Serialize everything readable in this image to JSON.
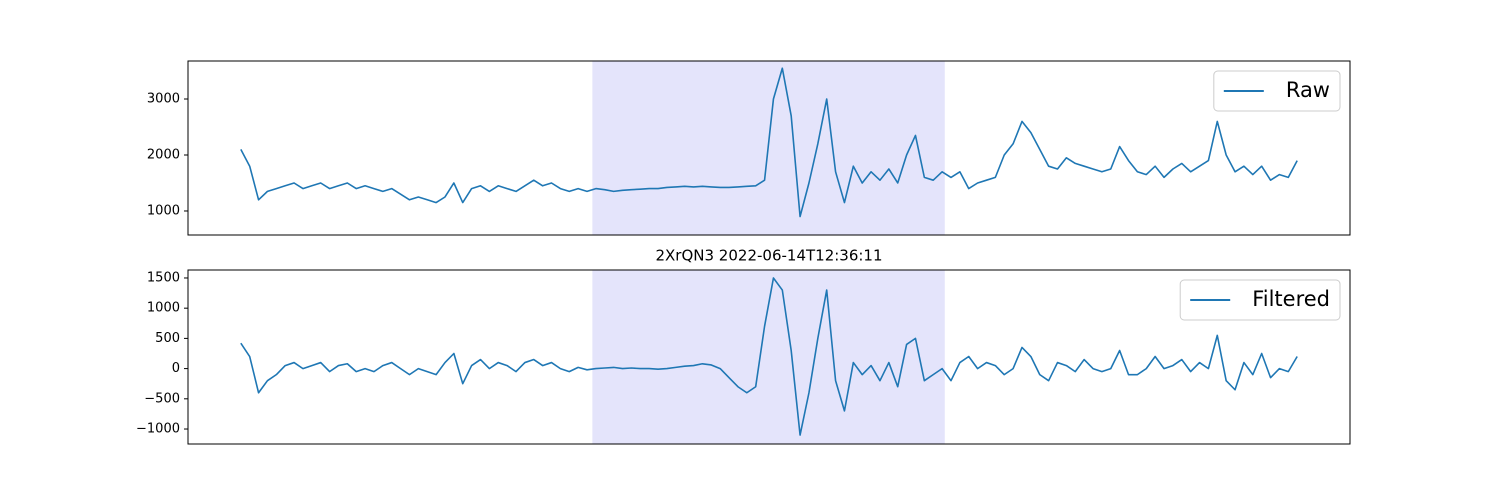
{
  "chart_data": [
    {
      "type": "line",
      "legend": "upper right",
      "xlim": [
        -5.95,
        124.95
      ],
      "ylim": [
        571,
        3679
      ],
      "yticks": [
        1000,
        2000,
        3000
      ],
      "span": [
        39.6,
        79.3
      ],
      "span_color": "#e4e4fb",
      "series": [
        {
          "name": "Raw",
          "color": "#1f77b4",
          "values": [
            2100,
            1800,
            1200,
            1350,
            1400,
            1450,
            1500,
            1400,
            1450,
            1500,
            1400,
            1450,
            1500,
            1400,
            1450,
            1400,
            1350,
            1400,
            1300,
            1200,
            1250,
            1200,
            1150,
            1250,
            1500,
            1150,
            1400,
            1450,
            1350,
            1450,
            1400,
            1350,
            1450,
            1550,
            1450,
            1500,
            1400,
            1350,
            1400,
            1350,
            1400,
            1380,
            1350,
            1370,
            1380,
            1390,
            1400,
            1400,
            1420,
            1430,
            1440,
            1430,
            1440,
            1430,
            1420,
            1420,
            1430,
            1440,
            1450,
            1550,
            3000,
            3550,
            2700,
            900,
            1500,
            2200,
            3000,
            1700,
            1150,
            1800,
            1500,
            1700,
            1550,
            1750,
            1500,
            2000,
            2350,
            1600,
            1550,
            1700,
            1600,
            1700,
            1400,
            1500,
            1550,
            1600,
            2000,
            2200,
            2600,
            2400,
            2100,
            1800,
            1750,
            1950,
            1850,
            1800,
            1750,
            1700,
            1750,
            2150,
            1900,
            1700,
            1650,
            1800,
            1600,
            1750,
            1850,
            1700,
            1800,
            1900,
            2600,
            2000,
            1700,
            1800,
            1650,
            1800,
            1550,
            1650,
            1600,
            1900
          ]
        }
      ]
    },
    {
      "type": "line",
      "title": "2XrQN3 2022-06-14T12:36:11",
      "legend": "upper right",
      "xlim": [
        -5.95,
        124.95
      ],
      "ylim": [
        -1248,
        1632
      ],
      "yticks": [
        {
          "value": -1000,
          "label": "−1000"
        },
        {
          "value": -500,
          "label": "−500"
        },
        0,
        500,
        1000,
        1500
      ],
      "span": [
        39.6,
        79.3
      ],
      "span_color": "#e4e4fb",
      "series": [
        {
          "name": "Filtered",
          "color": "#1f77b4",
          "values": [
            420,
            200,
            -400,
            -200,
            -100,
            50,
            100,
            0,
            50,
            100,
            -50,
            50,
            80,
            -50,
            0,
            -50,
            50,
            100,
            0,
            -100,
            0,
            -50,
            -100,
            100,
            250,
            -250,
            50,
            150,
            0,
            100,
            50,
            -50,
            100,
            150,
            50,
            100,
            0,
            -50,
            20,
            -20,
            0,
            10,
            20,
            0,
            10,
            0,
            0,
            -10,
            0,
            20,
            40,
            50,
            80,
            60,
            0,
            -150,
            -300,
            -400,
            -300,
            700,
            1500,
            1300,
            300,
            -1100,
            -400,
            500,
            1300,
            -200,
            -700,
            100,
            -100,
            50,
            -200,
            100,
            -300,
            400,
            500,
            -200,
            -100,
            0,
            -200,
            100,
            200,
            0,
            100,
            50,
            -100,
            0,
            350,
            200,
            -100,
            -200,
            100,
            50,
            -50,
            150,
            0,
            -50,
            0,
            300,
            -100,
            -100,
            0,
            200,
            0,
            50,
            150,
            -50,
            100,
            0,
            550,
            -200,
            -350,
            100,
            -100,
            250,
            -150,
            0,
            -50,
            200
          ]
        }
      ]
    }
  ]
}
